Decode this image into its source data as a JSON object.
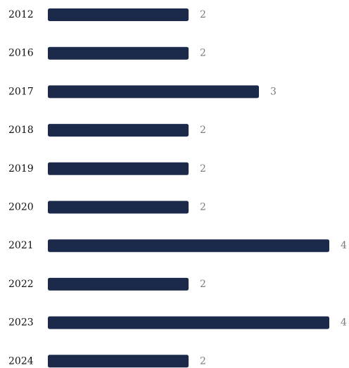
{
  "chart_data": {
    "type": "bar",
    "orientation": "horizontal",
    "categories": [
      "2012",
      "2016",
      "2017",
      "2018",
      "2019",
      "2020",
      "2021",
      "2022",
      "2023",
      "2024"
    ],
    "values": [
      2,
      2,
      3,
      2,
      2,
      2,
      4,
      2,
      4,
      2
    ],
    "title": "",
    "xlabel": "",
    "ylabel": "",
    "xlim": [
      0,
      4
    ],
    "grid": false,
    "legend": "none",
    "data_labels": true
  },
  "colors": {
    "bar": "#1b2a4a",
    "category_text": "#111111",
    "value_text": "#7a7a7a"
  }
}
